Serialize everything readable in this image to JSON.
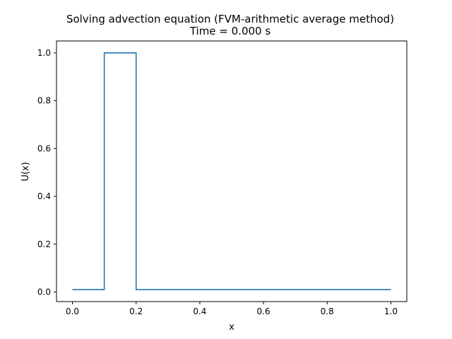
{
  "chart_data": {
    "type": "line",
    "title": "Solving advection equation (FVM-arithmetic average method)",
    "subtitle": "Time = 0.000 s",
    "xlabel": "x",
    "ylabel": "U(x)",
    "xlim": [
      -0.05,
      1.05
    ],
    "ylim": [
      -0.04,
      1.05
    ],
    "xticks": [
      0.0,
      0.2,
      0.4,
      0.6,
      0.8,
      1.0
    ],
    "xtick_labels": [
      "0.0",
      "0.2",
      "0.4",
      "0.6",
      "0.8",
      "1.0"
    ],
    "yticks": [
      0.0,
      0.2,
      0.4,
      0.6,
      0.8,
      1.0
    ],
    "ytick_labels": [
      "0.0",
      "0.2",
      "0.4",
      "0.6",
      "0.8",
      "1.0"
    ],
    "grid": false,
    "series": [
      {
        "color": "#1f77b4",
        "x": [
          0.0,
          0.1,
          0.1,
          0.2,
          0.2,
          1.0
        ],
        "y": [
          0.01,
          0.01,
          1.0,
          1.0,
          0.01,
          0.01
        ]
      }
    ]
  }
}
